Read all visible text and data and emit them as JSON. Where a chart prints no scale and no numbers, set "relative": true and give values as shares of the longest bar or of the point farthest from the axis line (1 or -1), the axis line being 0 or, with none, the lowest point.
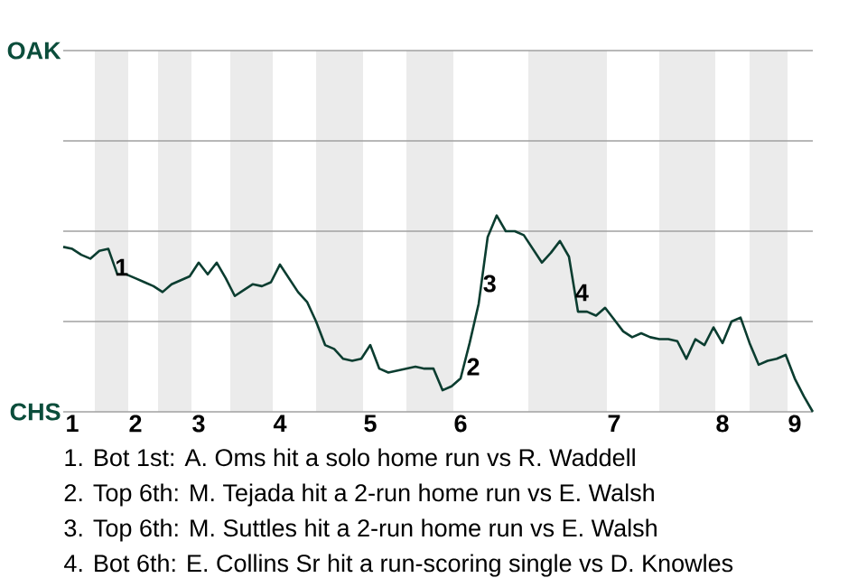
{
  "chart_data": {
    "type": "line",
    "relative": true,
    "categories": [
      null,
      "1",
      null,
      null,
      null,
      null,
      null,
      null,
      "2",
      null,
      null,
      null,
      null,
      null,
      null,
      "3",
      null,
      null,
      null,
      null,
      null,
      null,
      null,
      null,
      "4",
      null,
      null,
      null,
      null,
      null,
      null,
      null,
      null,
      null,
      "5",
      null,
      null,
      null,
      null,
      null,
      null,
      null,
      null,
      null,
      "6",
      null,
      null,
      null,
      null,
      null,
      null,
      null,
      null,
      null,
      null,
      null,
      null,
      null,
      null,
      null,
      null,
      "7",
      null,
      null,
      null,
      null,
      null,
      null,
      null,
      null,
      null,
      null,
      null,
      "8",
      null,
      null,
      null,
      null,
      null,
      null,
      null,
      "9",
      null,
      null
    ],
    "series": [
      {
        "color": "#0b3d30",
        "values": [
          0.84,
          0.83,
          0.8,
          0.78,
          0.82,
          0.83,
          0.7,
          0.7,
          0.68,
          0.66,
          0.64,
          0.61,
          0.65,
          0.67,
          0.69,
          0.76,
          0.7,
          0.76,
          0.68,
          0.59,
          0.62,
          0.65,
          0.64,
          0.66,
          0.75,
          0.68,
          0.61,
          0.56,
          0.46,
          0.34,
          0.32,
          0.27,
          0.26,
          0.27,
          0.34,
          0.22,
          0.2,
          0.21,
          0.22,
          0.23,
          0.22,
          0.22,
          0.11,
          0.13,
          0.17,
          0.35,
          0.55,
          0.89,
          1,
          0.92,
          0.92,
          0.9,
          0.83,
          0.76,
          0.81,
          0.87,
          0.79,
          0.51,
          0.51,
          0.49,
          0.53,
          0.47,
          0.41,
          0.38,
          0.4,
          0.38,
          0.37,
          0.37,
          0.36,
          0.27,
          0.37,
          0.34,
          0.43,
          0.35,
          0.46,
          0.48,
          0.35,
          0.24,
          0.26,
          0.27,
          0.29,
          0.17,
          0.08,
          0
        ]
      }
    ],
    "marker": "none",
    "line_style": "solid",
    "ref_lines": [
      {
        "axis": "y",
        "value": 0,
        "label": "CHS",
        "color": "#a0a0a0"
      },
      {
        "axis": "y",
        "value": 0.46,
        "label": null,
        "color": "#a0a0a0"
      },
      {
        "axis": "y",
        "value": 0.92,
        "label": null,
        "color": "#a0a0a0"
      },
      {
        "axis": "y",
        "value": 1.38,
        "label": null,
        "color": "#a0a0a0"
      },
      {
        "axis": "y",
        "value": 1.84,
        "label": "OAK",
        "color": "#a0a0a0"
      }
    ],
    "annotations": [
      "1",
      "2",
      "3",
      "4",
      "1. Bot 1st: A. Oms hit a solo home run vs R. Waddell",
      "2. Top 6th: M. Tejada hit a 2-run home run vs E. Walsh",
      "3. Top 6th: M. Suttles hit a 2-run home run vs E. Walsh",
      "4. Bot 6th: E. Collins Sr hit a run-scoring single vs D. Knowles"
    ]
  }
}
